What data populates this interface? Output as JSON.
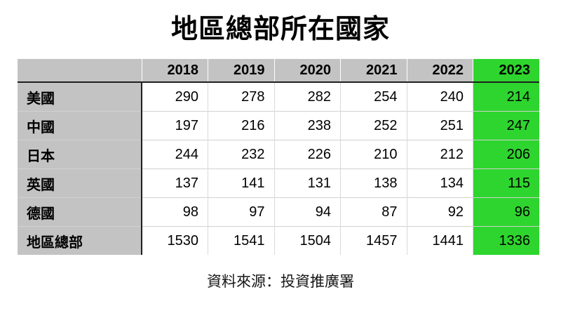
{
  "colors": {
    "header_gray": "#c3c3c3",
    "highlight_green": "#2ed52e",
    "dark_border": "#1f1f1f",
    "light_grid": "#d6d6d6"
  },
  "chart_data": {
    "type": "table",
    "title": "地區總部所在國家",
    "columns": [
      "",
      "2018",
      "2019",
      "2020",
      "2021",
      "2022",
      "2023"
    ],
    "highlighted_column": "2023",
    "rows": [
      {
        "label": "美國",
        "values": [
          290,
          278,
          282,
          254,
          240,
          214
        ]
      },
      {
        "label": "中國",
        "values": [
          197,
          216,
          238,
          252,
          251,
          247
        ]
      },
      {
        "label": "日本",
        "values": [
          244,
          232,
          226,
          210,
          212,
          206
        ]
      },
      {
        "label": "英國",
        "values": [
          137,
          141,
          131,
          138,
          134,
          115
        ]
      },
      {
        "label": "德國",
        "values": [
          98,
          97,
          94,
          87,
          92,
          96
        ]
      },
      {
        "label": "地區總部",
        "values": [
          1530,
          1541,
          1504,
          1457,
          1441,
          1336
        ]
      }
    ],
    "source": "資料來源：投資推廣署"
  }
}
